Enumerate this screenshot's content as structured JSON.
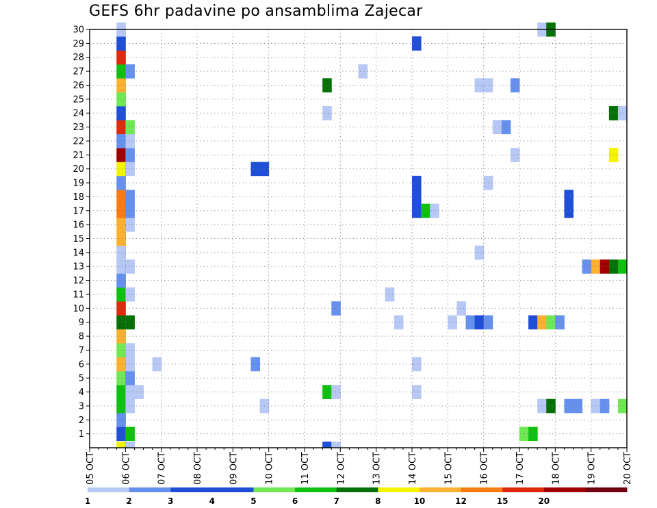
{
  "chart_data": {
    "type": "heatmap",
    "title": "GEFS 6hr padavine po ansamblima Zajecar",
    "x_ticks": [
      "05 OCT",
      "06 OCT",
      "07 OCT",
      "08 OCT",
      "09 OCT",
      "10 OCT",
      "11 OCT",
      "12 OCT",
      "13 OCT",
      "14 OCT",
      "15 OCT",
      "16 OCT",
      "17 OCT",
      "18 OCT",
      "19 OCT",
      "20 OCT"
    ],
    "x_range": [
      "05 OCT 00Z",
      "20 OCT 00Z"
    ],
    "x_step_hours": 6,
    "y_ticks": [
      "1",
      "2",
      "3",
      "4",
      "5",
      "6",
      "7",
      "8",
      "9",
      "10",
      "11",
      "12",
      "13",
      "14",
      "15",
      "16",
      "17",
      "18",
      "19",
      "20",
      "21",
      "22",
      "23",
      "24",
      "25",
      "26",
      "27",
      "28",
      "29",
      "30"
    ],
    "ylim": [
      0,
      30
    ],
    "grid": true,
    "legend_position": "bottom",
    "legend": {
      "levels": [
        "1",
        "2",
        "3",
        "4",
        "5",
        "6",
        "7",
        "8",
        "10",
        "12",
        "15",
        "20"
      ],
      "colors": [
        "#b8c8f4",
        "#6690ee",
        "#1f4fd6",
        "#1f4fd6",
        "#70e854",
        "#10c010",
        "#067006",
        "#f4f400",
        "#fcb030",
        "#fa7c10",
        "#e0280c",
        "#a00000",
        "#700010"
      ]
    },
    "cells": [
      {
        "member": 1,
        "step": 3,
        "color": "#1f4fd6"
      },
      {
        "member": 1,
        "step": 4,
        "color": "#10c010"
      },
      {
        "member": 1,
        "step": 48,
        "color": "#70e854"
      },
      {
        "member": 1,
        "step": 49,
        "color": "#10c010"
      },
      {
        "member": 2,
        "step": 3,
        "color": "#6690ee"
      },
      {
        "member": 3,
        "step": 3,
        "color": "#10c010"
      },
      {
        "member": 3,
        "step": 4,
        "color": "#b8c8f4"
      },
      {
        "member": 3,
        "step": 19,
        "color": "#b8c8f4"
      },
      {
        "member": 3,
        "step": 50,
        "color": "#b8c8f4"
      },
      {
        "member": 3,
        "step": 51,
        "color": "#067006"
      },
      {
        "member": 3,
        "step": 53,
        "color": "#6690ee"
      },
      {
        "member": 3,
        "step": 54,
        "color": "#6690ee"
      },
      {
        "member": 3,
        "step": 56,
        "color": "#b8c8f4"
      },
      {
        "member": 3,
        "step": 57,
        "color": "#6690ee"
      },
      {
        "member": 3,
        "step": 59,
        "color": "#70e854"
      },
      {
        "member": 4,
        "step": 3,
        "color": "#10c010"
      },
      {
        "member": 4,
        "step": 4,
        "color": "#b8c8f4"
      },
      {
        "member": 4,
        "step": 5,
        "color": "#b8c8f4"
      },
      {
        "member": 4,
        "step": 26,
        "color": "#10c010"
      },
      {
        "member": 4,
        "step": 27,
        "color": "#b8c8f4"
      },
      {
        "member": 4,
        "step": 36,
        "color": "#b8c8f4"
      },
      {
        "member": 5,
        "step": 3,
        "color": "#70e854"
      },
      {
        "member": 5,
        "step": 4,
        "color": "#6690ee"
      },
      {
        "member": 6,
        "step": 3,
        "color": "#fcb030"
      },
      {
        "member": 6,
        "step": 4,
        "color": "#b8c8f4"
      },
      {
        "member": 6,
        "step": 7,
        "color": "#b8c8f4"
      },
      {
        "member": 6,
        "step": 18,
        "color": "#6690ee"
      },
      {
        "member": 6,
        "step": 36,
        "color": "#b8c8f4"
      },
      {
        "member": 7,
        "step": 3,
        "color": "#70e854"
      },
      {
        "member": 7,
        "step": 4,
        "color": "#b8c8f4"
      },
      {
        "member": 8,
        "step": 3,
        "color": "#fcb030"
      },
      {
        "member": 9,
        "step": 3,
        "color": "#067006"
      },
      {
        "member": 9,
        "step": 4,
        "color": "#067006"
      },
      {
        "member": 9,
        "step": 34,
        "color": "#b8c8f4"
      },
      {
        "member": 9,
        "step": 40,
        "color": "#b8c8f4"
      },
      {
        "member": 9,
        "step": 42,
        "color": "#6690ee"
      },
      {
        "member": 9,
        "step": 43,
        "color": "#1f4fd6"
      },
      {
        "member": 9,
        "step": 44,
        "color": "#6690ee"
      },
      {
        "member": 9,
        "step": 49,
        "color": "#1f4fd6"
      },
      {
        "member": 9,
        "step": 50,
        "color": "#fcb030"
      },
      {
        "member": 9,
        "step": 51,
        "color": "#70e854"
      },
      {
        "member": 9,
        "step": 52,
        "color": "#6690ee"
      },
      {
        "member": 10,
        "step": 3,
        "color": "#e0280c"
      },
      {
        "member": 10,
        "step": 27,
        "color": "#6690ee"
      },
      {
        "member": 10,
        "step": 41,
        "color": "#b8c8f4"
      },
      {
        "member": 11,
        "step": 3,
        "color": "#10c010"
      },
      {
        "member": 11,
        "step": 4,
        "color": "#b8c8f4"
      },
      {
        "member": 11,
        "step": 33,
        "color": "#b8c8f4"
      },
      {
        "member": 12,
        "step": 3,
        "color": "#6690ee"
      },
      {
        "member": 13,
        "step": 3,
        "color": "#b8c8f4"
      },
      {
        "member": 13,
        "step": 4,
        "color": "#b8c8f4"
      },
      {
        "member": 13,
        "step": 55,
        "color": "#6690ee"
      },
      {
        "member": 13,
        "step": 56,
        "color": "#fcb030"
      },
      {
        "member": 13,
        "step": 57,
        "color": "#a00000"
      },
      {
        "member": 13,
        "step": 58,
        "color": "#067006"
      },
      {
        "member": 13,
        "step": 59,
        "color": "#10c010"
      },
      {
        "member": 14,
        "step": 3,
        "color": "#b8c8f4"
      },
      {
        "member": 14,
        "step": 43,
        "color": "#b8c8f4"
      },
      {
        "member": 15,
        "step": 3,
        "color": "#fcb030"
      },
      {
        "member": 16,
        "step": 3,
        "color": "#fcb030"
      },
      {
        "member": 16,
        "step": 4,
        "color": "#b8c8f4"
      },
      {
        "member": 17,
        "step": 3,
        "color": "#fa7c10"
      },
      {
        "member": 17,
        "step": 4,
        "color": "#6690ee"
      },
      {
        "member": 17,
        "step": 36,
        "color": "#1f4fd6"
      },
      {
        "member": 17,
        "step": 37,
        "color": "#10c010"
      },
      {
        "member": 17,
        "step": 38,
        "color": "#b8c8f4"
      },
      {
        "member": 17,
        "step": 53,
        "color": "#1f4fd6"
      },
      {
        "member": 18,
        "step": 3,
        "color": "#fa7c10"
      },
      {
        "member": 18,
        "step": 4,
        "color": "#6690ee"
      },
      {
        "member": 18,
        "step": 36,
        "color": "#1f4fd6"
      },
      {
        "member": 18,
        "step": 53,
        "color": "#1f4fd6"
      },
      {
        "member": 19,
        "step": 3,
        "color": "#6690ee"
      },
      {
        "member": 19,
        "step": 36,
        "color": "#1f4fd6"
      },
      {
        "member": 19,
        "step": 44,
        "color": "#b8c8f4"
      },
      {
        "member": 20,
        "step": 3,
        "color": "#f4f400"
      },
      {
        "member": 20,
        "step": 4,
        "color": "#b8c8f4"
      },
      {
        "member": 20,
        "step": 18,
        "color": "#1f4fd6"
      },
      {
        "member": 20,
        "step": 19,
        "color": "#1f4fd6"
      },
      {
        "member": 21,
        "step": 3,
        "color": "#a00000"
      },
      {
        "member": 21,
        "step": 4,
        "color": "#6690ee"
      },
      {
        "member": 21,
        "step": 47,
        "color": "#b8c8f4"
      },
      {
        "member": 21,
        "step": 58,
        "color": "#f4f400"
      },
      {
        "member": 22,
        "step": 3,
        "color": "#6690ee"
      },
      {
        "member": 22,
        "step": 4,
        "color": "#b8c8f4"
      },
      {
        "member": 23,
        "step": 3,
        "color": "#e0280c"
      },
      {
        "member": 23,
        "step": 4,
        "color": "#70e854"
      },
      {
        "member": 23,
        "step": 45,
        "color": "#b8c8f4"
      },
      {
        "member": 23,
        "step": 46,
        "color": "#6690ee"
      },
      {
        "member": 24,
        "step": 3,
        "color": "#1f4fd6"
      },
      {
        "member": 24,
        "step": 26,
        "color": "#b8c8f4"
      },
      {
        "member": 24,
        "step": 58,
        "color": "#067006"
      },
      {
        "member": 24,
        "step": 59,
        "color": "#b8c8f4"
      },
      {
        "member": 25,
        "step": 3,
        "color": "#70e854"
      },
      {
        "member": 26,
        "step": 3,
        "color": "#fcb030"
      },
      {
        "member": 26,
        "step": 26,
        "color": "#067006"
      },
      {
        "member": 26,
        "step": 43,
        "color": "#b8c8f4"
      },
      {
        "member": 26,
        "step": 44,
        "color": "#b8c8f4"
      },
      {
        "member": 26,
        "step": 47,
        "color": "#6690ee"
      },
      {
        "member": 27,
        "step": 3,
        "color": "#10c010"
      },
      {
        "member": 27,
        "step": 4,
        "color": "#6690ee"
      },
      {
        "member": 27,
        "step": 30,
        "color": "#b8c8f4"
      },
      {
        "member": 28,
        "step": 3,
        "color": "#e0280c"
      },
      {
        "member": 29,
        "step": 3,
        "color": "#1f4fd6"
      },
      {
        "member": 29,
        "step": 36,
        "color": "#1f4fd6"
      },
      {
        "member": 30,
        "step": 3,
        "color": "#b8c8f4"
      },
      {
        "member": 30,
        "step": 50,
        "color": "#b8c8f4"
      },
      {
        "member": 30,
        "step": 51,
        "color": "#067006"
      },
      {
        "member": 0,
        "step": 3,
        "color": "#f4f400"
      },
      {
        "member": 0,
        "step": 4,
        "color": "#b8c8f4"
      },
      {
        "member": 0,
        "step": 26,
        "color": "#1f4fd6"
      },
      {
        "member": 0,
        "step": 27,
        "color": "#b8c8f4"
      }
    ]
  }
}
